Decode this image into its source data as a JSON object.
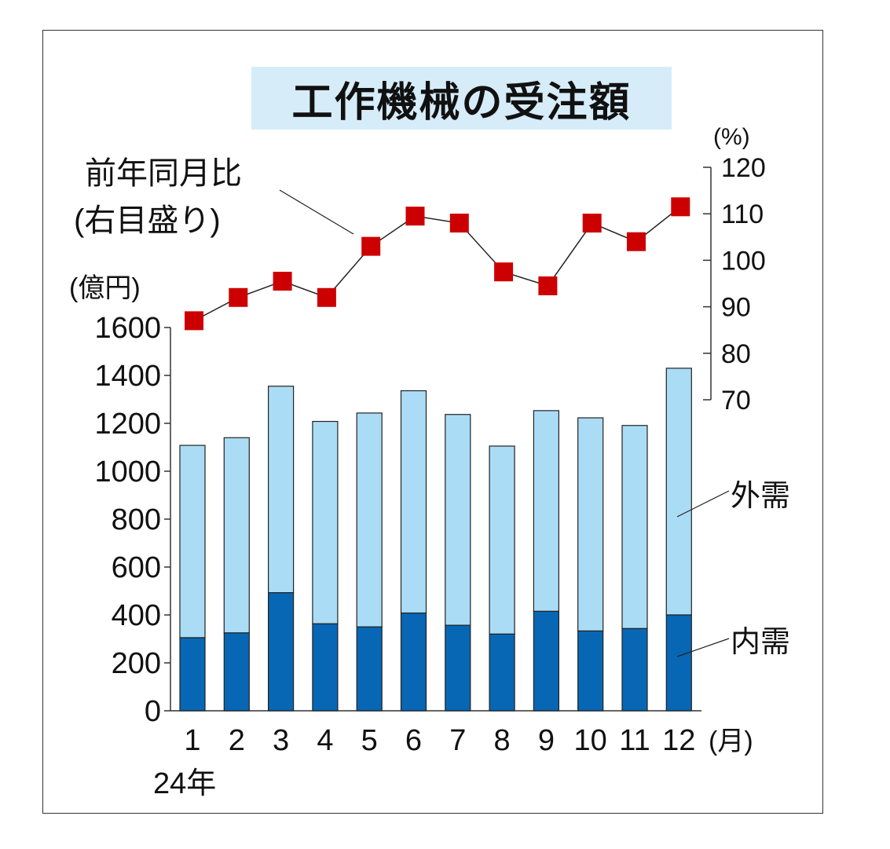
{
  "chart_data": {
    "type": "bar",
    "title": "工作機械の受注額",
    "categories": [
      "1",
      "2",
      "3",
      "4",
      "5",
      "6",
      "7",
      "8",
      "9",
      "10",
      "11",
      "12"
    ],
    "x_unit": "(月)",
    "x_year_label": "24年",
    "series": [
      {
        "name": "内需",
        "values": [
          305,
          325,
          493,
          363,
          350,
          408,
          357,
          320,
          415,
          333,
          343,
          400
        ],
        "color": "#0767b4"
      },
      {
        "name": "外需",
        "values": [
          803,
          815,
          862,
          845,
          893,
          928,
          880,
          785,
          838,
          890,
          848,
          1030
        ],
        "color": "#aadcf5"
      }
    ],
    "yoy": {
      "name": "前年同月比",
      "name_note": "(右目盛り)",
      "values": [
        87,
        92,
        95.5,
        92,
        103,
        109.5,
        108,
        97.5,
        94.5,
        108,
        104,
        111.5
      ],
      "color": "#cc0000"
    },
    "y_left": {
      "unit": "(億円)",
      "ticks": [
        "0",
        "200",
        "400",
        "600",
        "800",
        "1000",
        "1200",
        "1400",
        "1600"
      ],
      "ylim": [
        0,
        1600
      ]
    },
    "y_right": {
      "unit": "(%)",
      "ticks": [
        "70",
        "80",
        "90",
        "100",
        "110",
        "120"
      ],
      "ylim": [
        70,
        120
      ]
    }
  }
}
